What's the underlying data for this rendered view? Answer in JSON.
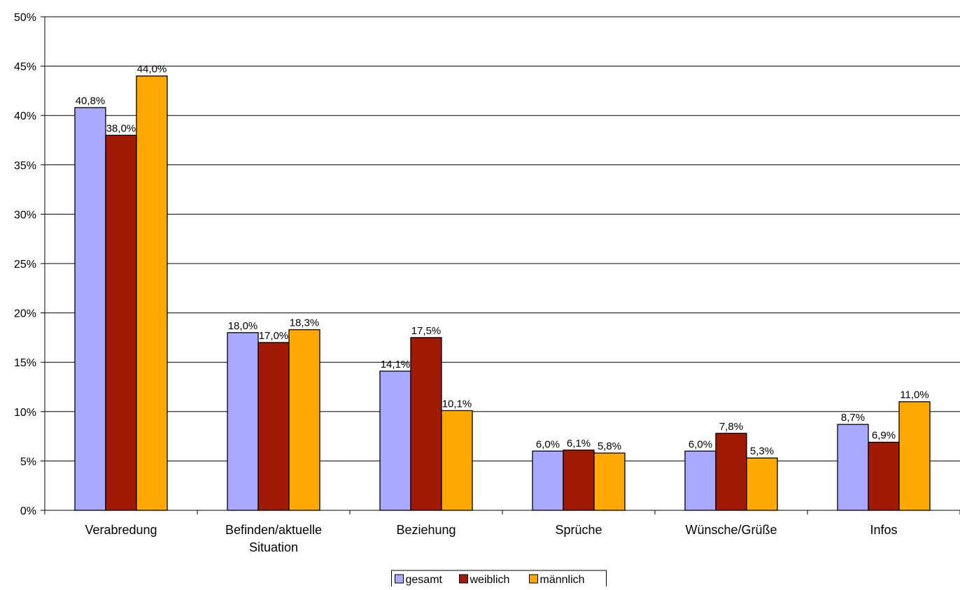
{
  "chart_data": {
    "type": "bar",
    "title": "",
    "xlabel": "",
    "ylabel": "",
    "ylim": [
      0,
      50
    ],
    "yticks": [
      0,
      5,
      10,
      15,
      20,
      25,
      30,
      35,
      40,
      45,
      50
    ],
    "ytick_labels": [
      "0%",
      "5%",
      "10%",
      "15%",
      "20%",
      "25%",
      "30%",
      "35%",
      "40%",
      "45%",
      "50%"
    ],
    "grid": true,
    "legend_position": "bottom-center",
    "categories": [
      [
        "Verabredung"
      ],
      [
        "Befinden/aktuelle",
        "Situation"
      ],
      [
        "Beziehung"
      ],
      [
        "Sprüche"
      ],
      [
        "Wünsche/Grüße"
      ],
      [
        "Infos"
      ]
    ],
    "series": [
      {
        "name": "gesamt",
        "color": "#A9A9FF",
        "values": [
          40.8,
          18.0,
          14.1,
          6.0,
          6.0,
          8.7
        ],
        "labels": [
          "40,8%",
          "18,0%",
          "14,1%",
          "6,0%",
          "6,0%",
          "8,7%"
        ]
      },
      {
        "name": "weiblich",
        "color": "#A11A05",
        "values": [
          38.0,
          17.0,
          17.5,
          6.1,
          7.8,
          6.9
        ],
        "labels": [
          "38,0%",
          "17,0%",
          "17,5%",
          "6,1%",
          "7,8%",
          "6,9%"
        ]
      },
      {
        "name": "männlich",
        "color": "#FFA902",
        "values": [
          44.0,
          18.3,
          10.1,
          5.8,
          5.3,
          11.0
        ],
        "labels": [
          "44,0%",
          "18,3%",
          "10,1%",
          "5,8%",
          "5,3%",
          "11,0%"
        ]
      }
    ]
  }
}
